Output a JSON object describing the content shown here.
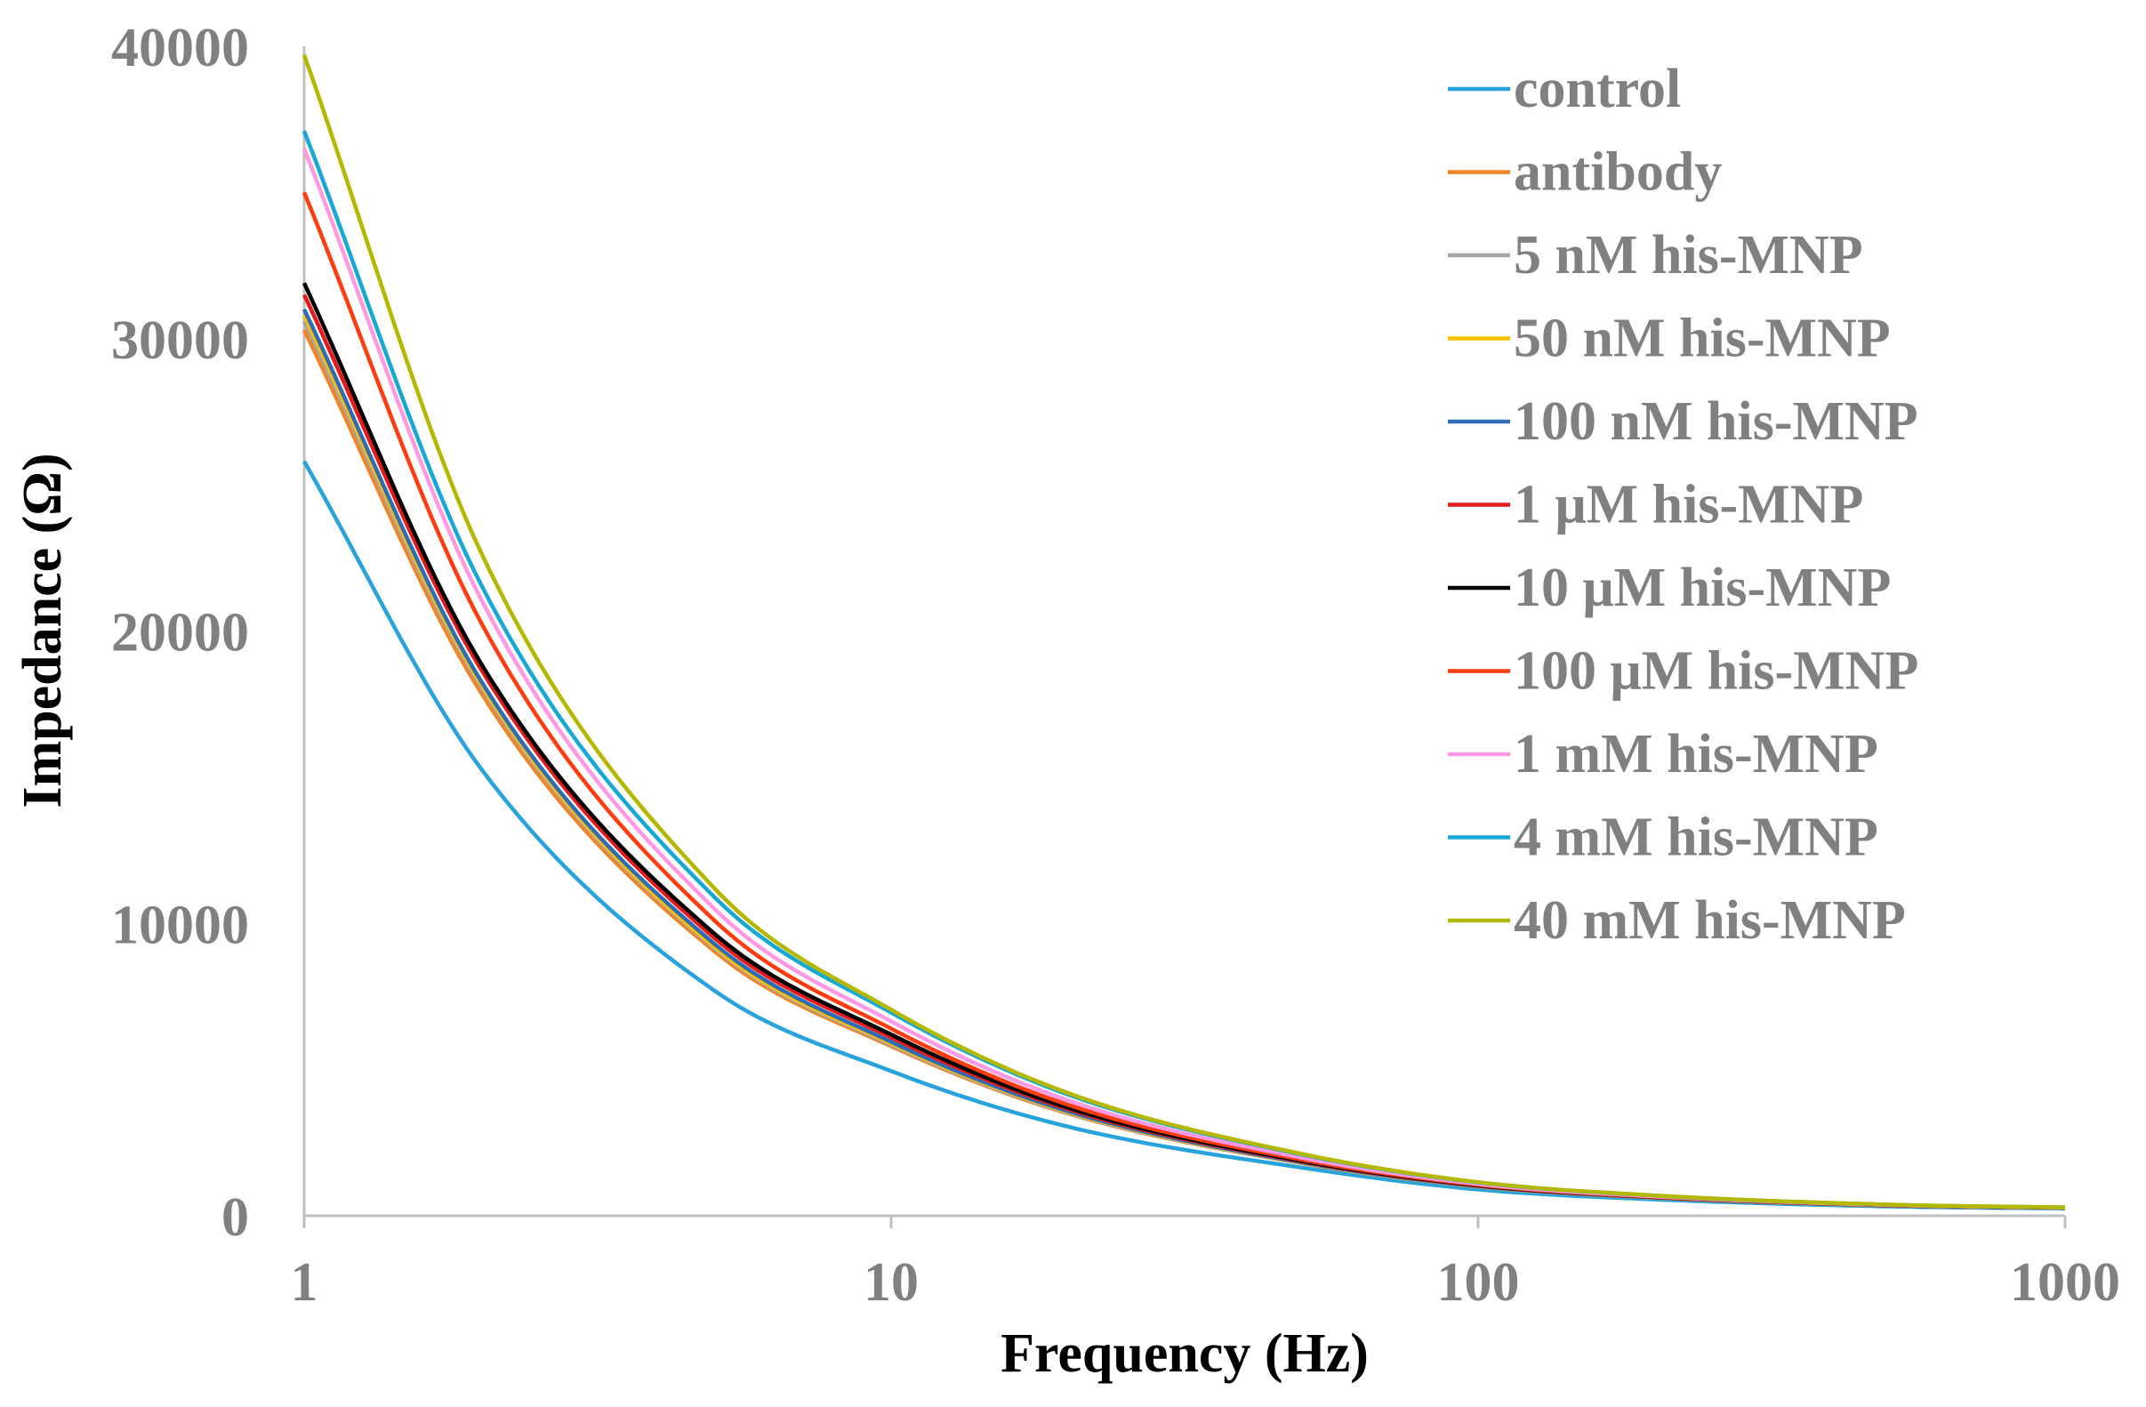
{
  "chart_data": {
    "type": "line",
    "title": "",
    "xlabel": "Frequency (Hz)",
    "ylabel": "Impedance (Ω)",
    "xscale": "log",
    "xlim": [
      1,
      1000
    ],
    "ylim": [
      0,
      40000
    ],
    "x_ticks": [
      "1",
      "10",
      "100",
      "1000"
    ],
    "y_ticks": [
      "0",
      "10000",
      "20000",
      "30000",
      "40000"
    ],
    "grid": false,
    "legend_position": "top-right",
    "x": [
      1,
      2,
      5,
      10,
      20,
      50,
      100,
      200,
      500,
      1000
    ],
    "series": [
      {
        "name": "control",
        "color": "#29A3DB",
        "values": [
          25800,
          15300,
          7700,
          4950,
          3050,
          1650,
          900,
          560,
          320,
          250
        ]
      },
      {
        "name": "antibody",
        "color": "#F58220",
        "values": [
          30300,
          17900,
          9050,
          5800,
          3500,
          1800,
          1000,
          620,
          350,
          270
        ]
      },
      {
        "name": "5 nM his-MNP",
        "color": "#A6A6A6",
        "values": [
          30600,
          18100,
          9150,
          5850,
          3520,
          1810,
          1005,
          622,
          352,
          272
        ]
      },
      {
        "name": "50 nM his-MNP",
        "color": "#FFC000",
        "values": [
          30800,
          18200,
          9200,
          5900,
          3550,
          1820,
          1010,
          625,
          354,
          273
        ]
      },
      {
        "name": "100 nM his-MNP",
        "color": "#2E6CB5",
        "values": [
          31000,
          18300,
          9300,
          5950,
          3580,
          1830,
          1015,
          628,
          355,
          274
        ]
      },
      {
        "name": "1 μM his-MNP",
        "color": "#E41A1C",
        "values": [
          31500,
          18700,
          9500,
          6100,
          3650,
          1860,
          1030,
          635,
          358,
          276
        ]
      },
      {
        "name": "10 μM his-MNP",
        "color": "#000000",
        "values": [
          31900,
          18900,
          9650,
          6200,
          3700,
          1880,
          1040,
          640,
          360,
          277
        ]
      },
      {
        "name": "100 μM his-MNP",
        "color": "#FF3B10",
        "values": [
          35000,
          20300,
          10100,
          6400,
          3800,
          1920,
          1060,
          650,
          365,
          280
        ]
      },
      {
        "name": "1 mM his-MNP",
        "color": "#FF99E6",
        "values": [
          36500,
          21100,
          10500,
          6650,
          3950,
          1990,
          1090,
          665,
          370,
          282
        ]
      },
      {
        "name": "4 mM his-MNP",
        "color": "#17A9D6",
        "values": [
          37100,
          21600,
          10900,
          6950,
          4150,
          2100,
          1140,
          690,
          380,
          285
        ]
      },
      {
        "name": "40 mM his-MNP",
        "color": "#B5B800",
        "values": [
          39700,
          22700,
          11200,
          7050,
          4200,
          2120,
          1150,
          695,
          382,
          286
        ]
      }
    ]
  }
}
